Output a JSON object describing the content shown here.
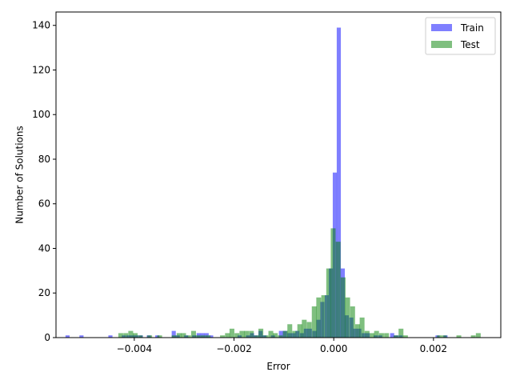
{
  "chart_data": {
    "type": "bar",
    "subtype": "histogram",
    "title": "",
    "xlabel": "Error",
    "ylabel": "Number of Solutions",
    "xlim": [
      -0.00557,
      0.00335
    ],
    "ylim": [
      0,
      146
    ],
    "x_ticks": [
      -0.004,
      -0.002,
      0.0,
      0.002
    ],
    "x_tick_labels": [
      "−0.004",
      "−0.002",
      "0.000",
      "0.002"
    ],
    "y_ticks": [
      0,
      20,
      40,
      60,
      80,
      100,
      120,
      140
    ],
    "y_tick_labels": [
      "0",
      "20",
      "40",
      "60",
      "80",
      "100",
      "120",
      "140"
    ],
    "grid": false,
    "legend_position": "top-right",
    "series": [
      {
        "name": "Train",
        "color": "#0000ff",
        "alpha": 0.5,
        "bin_width": 8.25e-05,
        "bins": [
          [
            -0.00538,
            1
          ],
          [
            -0.0051,
            1
          ],
          [
            -0.00452,
            1
          ],
          [
            -0.00425,
            1
          ],
          [
            -0.00416,
            1
          ],
          [
            -0.00408,
            1
          ],
          [
            -0.004,
            1
          ],
          [
            -0.00391,
            1
          ],
          [
            -0.00375,
            1
          ],
          [
            -0.00358,
            1
          ],
          [
            -0.00325,
            3
          ],
          [
            -0.00317,
            1
          ],
          [
            -0.003,
            1
          ],
          [
            -0.00284,
            1
          ],
          [
            -0.00275,
            2
          ],
          [
            -0.00267,
            2
          ],
          [
            -0.00259,
            2
          ],
          [
            -0.0025,
            1
          ],
          [
            -0.00193,
            1
          ],
          [
            -0.00176,
            1
          ],
          [
            -0.00168,
            2
          ],
          [
            -0.0016,
            1
          ],
          [
            -0.00151,
            3
          ],
          [
            -0.00143,
            1
          ],
          [
            -0.00126,
            1
          ],
          [
            -0.0011,
            3
          ],
          [
            -0.00102,
            3
          ],
          [
            -0.00093,
            2
          ],
          [
            -0.00085,
            2
          ],
          [
            -0.00077,
            3
          ],
          [
            -0.00068,
            2
          ],
          [
            -0.0006,
            4
          ],
          [
            -0.00052,
            4
          ],
          [
            -0.00043,
            3
          ],
          [
            -0.00035,
            8
          ],
          [
            -0.00027,
            16
          ],
          [
            -0.00018,
            19
          ],
          [
            -0.0001,
            31
          ],
          [
            -2e-05,
            74
          ],
          [
            6e-05,
            139
          ],
          [
            0.00014,
            31
          ],
          [
            0.00022,
            10
          ],
          [
            0.00031,
            9
          ],
          [
            0.00039,
            4
          ],
          [
            0.00047,
            4
          ],
          [
            0.00056,
            2
          ],
          [
            0.00064,
            2
          ],
          [
            0.0008,
            1
          ],
          [
            0.00089,
            1
          ],
          [
            0.00113,
            2
          ],
          [
            0.00121,
            1
          ],
          [
            0.0013,
            1
          ],
          [
            0.00204,
            1
          ],
          [
            0.0022,
            1
          ]
        ]
      },
      {
        "name": "Test",
        "color": "#008000",
        "alpha": 0.5,
        "bin_width": 9.7e-05,
        "bins": [
          [
            -0.00432,
            2
          ],
          [
            -0.00422,
            2
          ],
          [
            -0.00412,
            3
          ],
          [
            -0.00403,
            2
          ],
          [
            -0.00393,
            1
          ],
          [
            -0.00374,
            1
          ],
          [
            -0.00354,
            1
          ],
          [
            -0.00325,
            1
          ],
          [
            -0.00315,
            2
          ],
          [
            -0.00306,
            2
          ],
          [
            -0.00296,
            1
          ],
          [
            -0.00286,
            3
          ],
          [
            -0.00277,
            1
          ],
          [
            -0.00267,
            1
          ],
          [
            -0.00257,
            1
          ],
          [
            -0.00228,
            1
          ],
          [
            -0.00218,
            2
          ],
          [
            -0.00209,
            4
          ],
          [
            -0.00199,
            2
          ],
          [
            -0.00189,
            3
          ],
          [
            -0.0018,
            3
          ],
          [
            -0.0017,
            3
          ],
          [
            -0.0016,
            1
          ],
          [
            -0.00151,
            4
          ],
          [
            -0.00141,
            1
          ],
          [
            -0.00131,
            3
          ],
          [
            -0.00122,
            2
          ],
          [
            -0.00112,
            1
          ],
          [
            -0.00102,
            3
          ],
          [
            -0.00093,
            6
          ],
          [
            -0.00083,
            3
          ],
          [
            -0.00073,
            6
          ],
          [
            -0.00064,
            8
          ],
          [
            -0.00054,
            7
          ],
          [
            -0.00044,
            14
          ],
          [
            -0.00035,
            18
          ],
          [
            -0.00025,
            19
          ],
          [
            -0.00015,
            31
          ],
          [
            -6e-05,
            49
          ],
          [
            4e-05,
            43
          ],
          [
            0.00014,
            27
          ],
          [
            0.00023,
            18
          ],
          [
            0.00033,
            14
          ],
          [
            0.00043,
            6
          ],
          [
            0.00052,
            9
          ],
          [
            0.00062,
            3
          ],
          [
            0.00072,
            2
          ],
          [
            0.00081,
            3
          ],
          [
            0.00091,
            2
          ],
          [
            0.00101,
            2
          ],
          [
            0.0012,
            1
          ],
          [
            0.0013,
            4
          ],
          [
            0.00139,
            1
          ],
          [
            0.00207,
            1
          ],
          [
            0.00217,
            1
          ],
          [
            0.00246,
            1
          ],
          [
            0.00275,
            1
          ],
          [
            0.00285,
            2
          ]
        ]
      }
    ]
  }
}
